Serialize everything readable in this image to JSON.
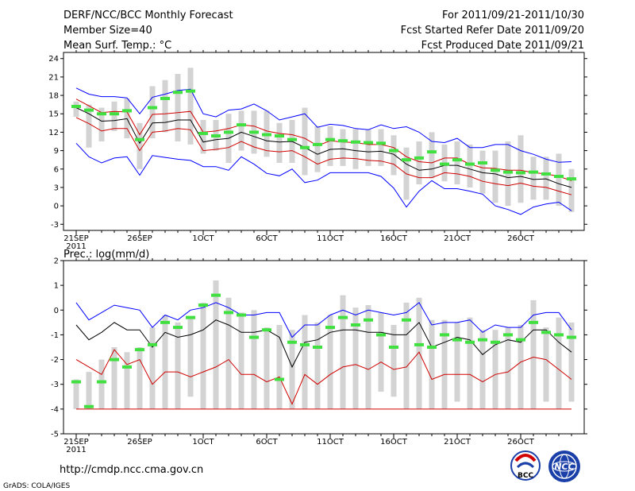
{
  "header": {
    "title": "DERF/NCC/BCC Monthly Forecast",
    "member_size": "Member Size=40",
    "variable": "Mean Surf. Temp.: °C",
    "period": "For 2011/09/21-2011/10/30",
    "started": "Fcst Started Refer Date 2011/09/20",
    "produced": "Fcst Produced Date 2011/09/21"
  },
  "footer": {
    "url": "http://cmdp.ncc.cma.gov.cn",
    "credit": "GrADS: COLA/IGES",
    "logo_bcc": "BCC",
    "logo_ncc": "NCC"
  },
  "colors": {
    "upper": "#0000ff",
    "lower_red": "#d00000",
    "mean": "#000000",
    "box": "#d3d3d3",
    "marker": "#40e040"
  },
  "chart_data": [
    {
      "type": "line",
      "title": "Mean Surf. Temp.: °C",
      "ylim": [
        -4,
        25
      ],
      "yticks": [
        -3,
        0,
        3,
        6,
        9,
        12,
        15,
        18,
        21,
        24
      ],
      "xtick_labels": [
        "21SEP",
        "26SEP",
        "1OCT",
        "6OCT",
        "11OCT",
        "16OCT",
        "21OCT",
        "26OCT"
      ],
      "xtick_days": [
        1,
        6,
        11,
        16,
        21,
        26,
        31,
        36
      ],
      "year_label": "2011",
      "days": 40,
      "series": [
        {
          "name": "max",
          "values": [
            19.2,
            18.2,
            17.8,
            17.8,
            17.6,
            15.0,
            17.7,
            18.2,
            18.8,
            19.0,
            15.0,
            14.5,
            15.6,
            15.8,
            16.6,
            15.5,
            14.0,
            14.5,
            15.0,
            12.8,
            13.3,
            13.1,
            12.6,
            12.4,
            13.2,
            12.6,
            12.9,
            12.0,
            10.5,
            10.3,
            11.0,
            9.5,
            9.5,
            10.0,
            10.0,
            9.0,
            8.4,
            7.6,
            7.1,
            7.2
          ]
        },
        {
          "name": "upper",
          "values": [
            17.4,
            16.3,
            15.2,
            15.4,
            15.3,
            11.6,
            14.9,
            15.0,
            15.2,
            15.4,
            12.0,
            12.2,
            12.6,
            13.2,
            13.0,
            12.2,
            11.8,
            11.6,
            11.0,
            9.8,
            10.6,
            10.4,
            10.3,
            10.0,
            10.0,
            9.5,
            8.0,
            7.2,
            7.0,
            7.8,
            7.8,
            6.8,
            6.2,
            6.1,
            5.8,
            5.8,
            5.4,
            5.2,
            4.8,
            4.1
          ]
        },
        {
          "name": "mean",
          "values": [
            16.0,
            15.0,
            13.8,
            13.9,
            14.2,
            10.2,
            13.5,
            13.6,
            14.0,
            14.0,
            10.4,
            10.8,
            11.0,
            12.0,
            11.3,
            10.6,
            10.4,
            10.5,
            9.5,
            8.4,
            9.2,
            9.3,
            9.0,
            8.8,
            8.9,
            8.4,
            6.8,
            5.8,
            6.0,
            6.6,
            6.6,
            6.0,
            5.4,
            5.2,
            4.6,
            4.8,
            4.3,
            4.4,
            3.6,
            3.0
          ]
        },
        {
          "name": "lower",
          "values": [
            14.4,
            13.4,
            12.2,
            12.6,
            12.6,
            9.0,
            12.0,
            12.2,
            12.6,
            12.4,
            9.0,
            9.2,
            9.5,
            10.5,
            9.6,
            9.0,
            8.8,
            9.0,
            8.0,
            6.8,
            7.6,
            7.8,
            7.7,
            7.4,
            7.3,
            6.8,
            5.2,
            4.6,
            4.6,
            5.4,
            5.2,
            4.8,
            4.0,
            3.6,
            3.3,
            3.7,
            3.2,
            3.0,
            2.4,
            1.8
          ]
        },
        {
          "name": "min",
          "values": [
            10.2,
            8.0,
            7.0,
            7.8,
            8.0,
            5.0,
            8.2,
            7.9,
            7.6,
            7.4,
            6.4,
            6.4,
            5.8,
            8.0,
            6.8,
            5.3,
            4.9,
            6.0,
            3.8,
            4.2,
            5.4,
            5.4,
            5.4,
            5.4,
            4.8,
            2.9,
            -0.2,
            2.4,
            4.1,
            2.8,
            2.8,
            2.4,
            1.9,
            0.0,
            -0.6,
            -1.4,
            -0.2,
            0.3,
            0.6,
            -0.8
          ]
        }
      ],
      "box_low": [
        14.5,
        9.5,
        10.5,
        12.2,
        11.0,
        6.0,
        11.0,
        12.0,
        10.5,
        10.0,
        8.5,
        9.0,
        7.0,
        9.0,
        8.5,
        8.0,
        7.0,
        7.0,
        5.0,
        5.5,
        6.5,
        6.5,
        6.0,
        6.5,
        6.5,
        5.0,
        1.0,
        3.5,
        4.5,
        4.0,
        3.5,
        3.0,
        2.0,
        0.5,
        0.0,
        0.5,
        1.0,
        1.0,
        0.0,
        -1.0
      ],
      "box_high": [
        17.0,
        16.5,
        16.0,
        17.0,
        17.5,
        13.5,
        19.5,
        20.5,
        21.5,
        22.5,
        14.0,
        14.0,
        15.0,
        15.5,
        15.5,
        15.5,
        13.5,
        14.0,
        16.0,
        13.0,
        13.0,
        12.5,
        12.5,
        12.5,
        12.5,
        11.5,
        9.5,
        10.5,
        12.0,
        10.0,
        10.5,
        10.0,
        9.0,
        9.0,
        10.5,
        11.5,
        8.0,
        8.0,
        8.5,
        6.0
      ],
      "markers": [
        16.2,
        15.6,
        15.0,
        15.0,
        15.5,
        10.8,
        16.0,
        17.5,
        18.5,
        18.7,
        11.8,
        11.4,
        12.0,
        13.2,
        12.0,
        11.6,
        11.4,
        10.8,
        9.5,
        10.0,
        10.8,
        10.6,
        10.4,
        10.3,
        10.2,
        9.0,
        7.5,
        7.8,
        8.8,
        6.8,
        7.5,
        6.8,
        7.0,
        5.8,
        5.5,
        5.4,
        5.5,
        5.2,
        4.8,
        4.4
      ]
    },
    {
      "type": "line",
      "title": "Prec.: log(mm/d)",
      "ylim": [
        -5,
        2
      ],
      "yticks": [
        -5,
        -4,
        -3,
        -2,
        -1,
        0,
        1,
        2
      ],
      "xtick_labels": [
        "21SEP",
        "26SEP",
        "1OCT",
        "6OCT",
        "11OCT",
        "16OCT",
        "21OCT",
        "26OCT"
      ],
      "xtick_days": [
        1,
        6,
        11,
        16,
        21,
        26,
        31,
        36
      ],
      "year_label": "2011",
      "days": 40,
      "series": [
        {
          "name": "upper",
          "values": [
            0.3,
            -0.4,
            -0.1,
            0.2,
            0.1,
            0.0,
            -0.7,
            -0.2,
            -0.4,
            0.0,
            0.1,
            0.3,
            0.1,
            -0.2,
            -0.2,
            -0.1,
            -0.1,
            -1.1,
            -0.6,
            -0.6,
            -0.2,
            0.0,
            -0.2,
            0.0,
            -0.1,
            -0.2,
            -0.1,
            0.3,
            -0.6,
            -0.5,
            -0.5,
            -0.4,
            -0.9,
            -0.6,
            -0.7,
            -0.7,
            -0.2,
            -0.1,
            -0.1,
            -0.8
          ]
        },
        {
          "name": "mean",
          "values": [
            -0.6,
            -1.2,
            -0.9,
            -0.5,
            -0.8,
            -0.8,
            -1.5,
            -0.9,
            -1.1,
            -1.0,
            -0.8,
            -0.4,
            -0.6,
            -0.9,
            -0.9,
            -0.8,
            -1.1,
            -2.3,
            -1.3,
            -1.2,
            -0.9,
            -0.8,
            -0.8,
            -0.9,
            -0.9,
            -1.0,
            -1.0,
            -0.5,
            -1.5,
            -1.3,
            -1.1,
            -1.2,
            -1.8,
            -1.4,
            -1.2,
            -1.3,
            -0.8,
            -0.8,
            -1.3,
            -1.7
          ]
        },
        {
          "name": "lower",
          "values": [
            -2.0,
            -2.3,
            -2.6,
            -1.6,
            -2.2,
            -2.0,
            -3.0,
            -2.5,
            -2.5,
            -2.7,
            -2.5,
            -2.3,
            -2.0,
            -2.6,
            -2.6,
            -2.9,
            -2.7,
            -3.8,
            -2.6,
            -3.0,
            -2.6,
            -2.3,
            -2.2,
            -2.4,
            -2.1,
            -2.4,
            -2.3,
            -1.7,
            -2.8,
            -2.6,
            -2.6,
            -2.6,
            -2.9,
            -2.6,
            -2.5,
            -2.1,
            -1.9,
            -2.0,
            -2.4,
            -2.8
          ]
        },
        {
          "name": "floor",
          "values": [
            -4.0,
            -4.0,
            -4.0,
            -4.0,
            -4.0,
            -4.0,
            -4.0,
            -4.0,
            -4.0,
            -4.0,
            -4.0,
            -4.0,
            -4.0,
            -4.0,
            -4.0,
            -4.0,
            -4.0,
            -4.0,
            -4.0,
            -4.0,
            -4.0,
            -4.0,
            -4.0,
            -4.0,
            -4.0,
            -4.0,
            -4.0,
            -4.0,
            -4.0,
            -4.0,
            -4.0,
            -4.0,
            -4.0,
            -4.0,
            -4.0,
            -4.0,
            -4.0,
            -4.0,
            -4.0,
            -4.0
          ]
        }
      ],
      "box_low": [
        -4.0,
        -4.0,
        -4.0,
        -4.0,
        -4.0,
        -4.0,
        -4.0,
        -4.0,
        -4.0,
        -3.5,
        -4.0,
        -4.0,
        -4.0,
        -4.0,
        -4.0,
        -4.0,
        -4.0,
        -4.0,
        -4.0,
        -4.0,
        -4.0,
        -4.0,
        -4.0,
        -4.0,
        -3.3,
        -3.5,
        -4.0,
        -4.0,
        -4.0,
        -4.0,
        -3.7,
        -4.0,
        -4.0,
        -4.0,
        -4.0,
        -4.0,
        -4.0,
        -3.7,
        -4.0,
        -3.7
      ],
      "box_high": [
        -2.8,
        -2.5,
        -2.0,
        -1.5,
        -1.7,
        -1.5,
        -0.7,
        -0.2,
        -0.5,
        -0.3,
        0.3,
        1.2,
        0.5,
        -0.1,
        0.0,
        -0.7,
        -0.6,
        -0.8,
        -0.2,
        -0.5,
        -0.2,
        0.6,
        0.1,
        0.2,
        -0.1,
        -0.6,
        0.3,
        0.5,
        -0.4,
        -0.4,
        -0.5,
        -0.3,
        -0.8,
        -0.8,
        -0.7,
        -0.6,
        0.4,
        -0.7,
        -0.3,
        -0.5
      ],
      "markers": [
        -2.9,
        -3.9,
        -2.9,
        -2.0,
        -2.3,
        -1.6,
        -1.4,
        -0.5,
        -0.7,
        -0.3,
        0.2,
        0.6,
        -0.1,
        -0.2,
        -1.1,
        -0.8,
        -2.8,
        -1.3,
        -1.4,
        -1.5,
        -0.7,
        -0.3,
        -0.6,
        -0.4,
        -1.0,
        -1.5,
        -0.4,
        -1.4,
        -1.5,
        -1.0,
        -1.2,
        -1.3,
        -1.2,
        -1.3,
        -1.0,
        -1.2,
        -0.5,
        -0.9,
        -1.0,
        -1.1
      ]
    }
  ]
}
